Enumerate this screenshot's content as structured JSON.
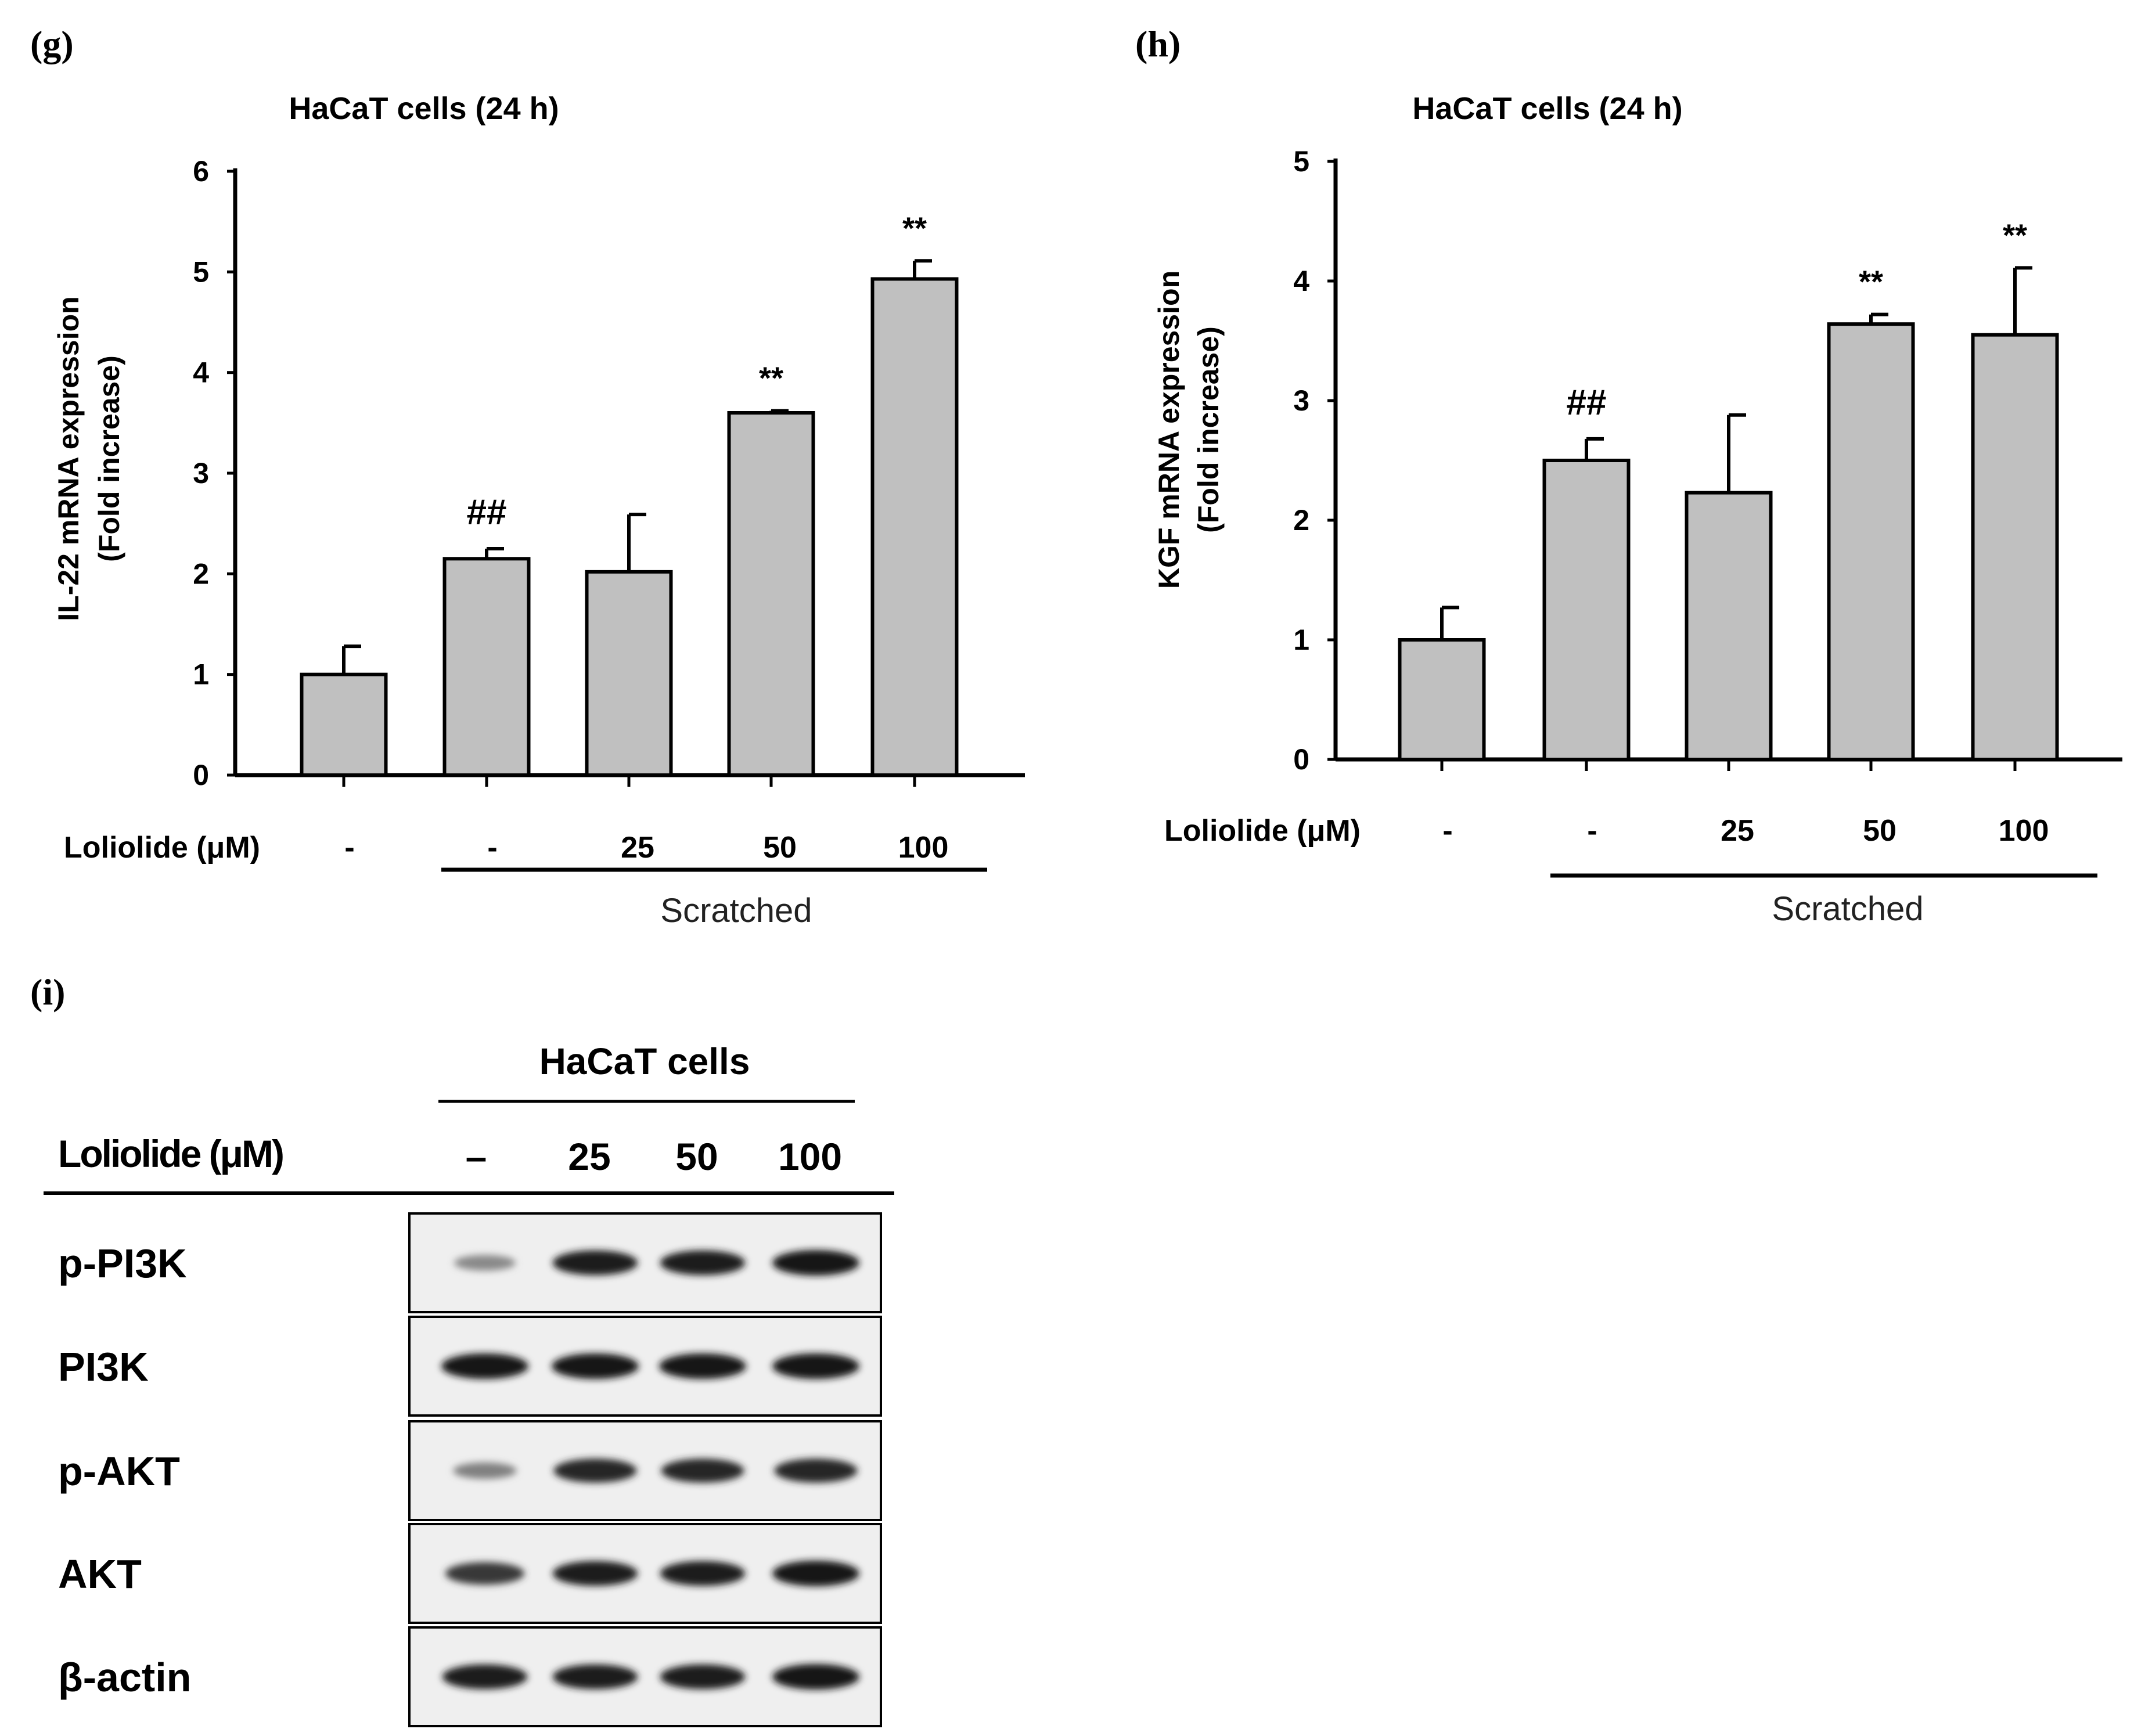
{
  "panels": {
    "g": "(g)",
    "h": "(h)",
    "i": "(i)"
  },
  "chart_data": [
    {
      "type": "bar",
      "panel": "g",
      "title": "HaCaT cells (24 h)",
      "ylabel_line1": "IL-22 mRNA expression",
      "ylabel_line2": "(Fold increase)",
      "treatment_label": "Loliolide (μM)",
      "categories": [
        "-",
        "-",
        "25",
        "50",
        "100"
      ],
      "group_label": "Scratched",
      "ylim": [
        0,
        6
      ],
      "yticks": [
        "0",
        "1",
        "2",
        "3",
        "4",
        "5",
        "6"
      ],
      "values": [
        1.0,
        2.15,
        2.02,
        3.6,
        4.93
      ],
      "errors": [
        0.28,
        0.1,
        0.57,
        0.02,
        0.18
      ],
      "annotations": [
        "",
        "##",
        "",
        "**",
        "**"
      ],
      "bar_color": "#c0c0c0"
    },
    {
      "type": "bar",
      "panel": "h",
      "title": "HaCaT cells (24 h)",
      "ylabel_line1": "KGF mRNA expression",
      "ylabel_line2": "(Fold increase)",
      "treatment_label": "Loliolide (μM)",
      "categories": [
        "-",
        "-",
        "25",
        "50",
        "100"
      ],
      "group_label": "Scratched",
      "ylim": [
        0,
        5
      ],
      "yticks": [
        "0",
        "1",
        "2",
        "3",
        "4",
        "5"
      ],
      "values": [
        1.0,
        2.5,
        2.23,
        3.64,
        3.55
      ],
      "errors": [
        0.27,
        0.18,
        0.65,
        0.08,
        0.56
      ],
      "annotations": [
        "",
        "##",
        "",
        "**",
        "**"
      ],
      "bar_color": "#c0c0c0"
    }
  ],
  "blot": {
    "title": "HaCaT cells",
    "treatment_label": "Loliolide (μM)",
    "lanes": [
      "–",
      "25",
      "50",
      "100"
    ],
    "rows": [
      {
        "label": "p-PI3K",
        "intensity": [
          0.35,
          0.95,
          0.95,
          1.0
        ]
      },
      {
        "label": "PI3K",
        "intensity": [
          1.0,
          1.0,
          1.0,
          1.0
        ]
      },
      {
        "label": "p-AKT",
        "intensity": [
          0.4,
          0.9,
          0.9,
          0.9
        ]
      },
      {
        "label": "AKT",
        "intensity": [
          0.8,
          0.95,
          0.95,
          1.0
        ]
      },
      {
        "label": "β-actin",
        "intensity": [
          0.95,
          0.95,
          0.95,
          1.0
        ]
      }
    ]
  }
}
